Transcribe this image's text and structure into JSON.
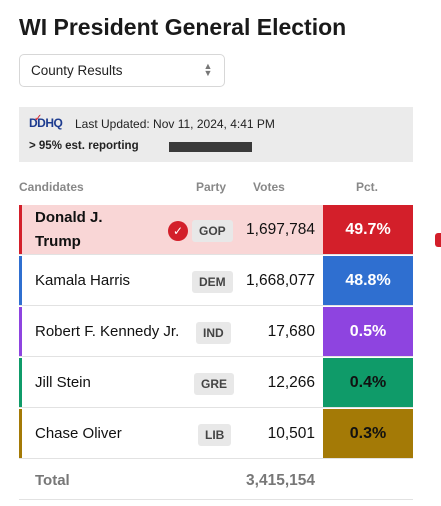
{
  "page": {
    "title": "WI President General Election"
  },
  "county_select": {
    "value": "County Results",
    "icon": "updown-chevron-icon"
  },
  "info": {
    "logo_text": "DDHQ",
    "updated": "Last Updated: Nov 11, 2024, 4:41 PM",
    "reporting": "> 95% est. reporting"
  },
  "table": {
    "headers": {
      "candidates": "Candidates",
      "party": "Party",
      "votes": "Votes",
      "pct": "Pct."
    },
    "rows": [
      {
        "name": "Donald J. Trump",
        "party": "GOP",
        "votes": "1,697,784",
        "pct": "49.7%",
        "color": "#d31f2a",
        "row_bg": "#f9d6d6",
        "winner": true
      },
      {
        "name": "Kamala Harris",
        "party": "DEM",
        "votes": "1,668,077",
        "pct": "48.8%",
        "color": "#2f6fd0",
        "row_bg": "#ffffff",
        "winner": false
      },
      {
        "name": "Robert F. Kennedy Jr.",
        "party": "IND",
        "votes": "17,680",
        "pct": "0.5%",
        "color": "#8e44e0",
        "row_bg": "#ffffff",
        "winner": false
      },
      {
        "name": "Jill Stein",
        "party": "GRE",
        "votes": "12,266",
        "pct": "0.4%",
        "color": "#0f9b69",
        "row_bg": "#ffffff",
        "winner": false
      },
      {
        "name": "Chase Oliver",
        "party": "LIB",
        "votes": "10,501",
        "pct": "0.3%",
        "color": "#a47a06",
        "row_bg": "#ffffff",
        "winner": false
      }
    ],
    "total_label": "Total",
    "total_votes": "3,415,154"
  }
}
